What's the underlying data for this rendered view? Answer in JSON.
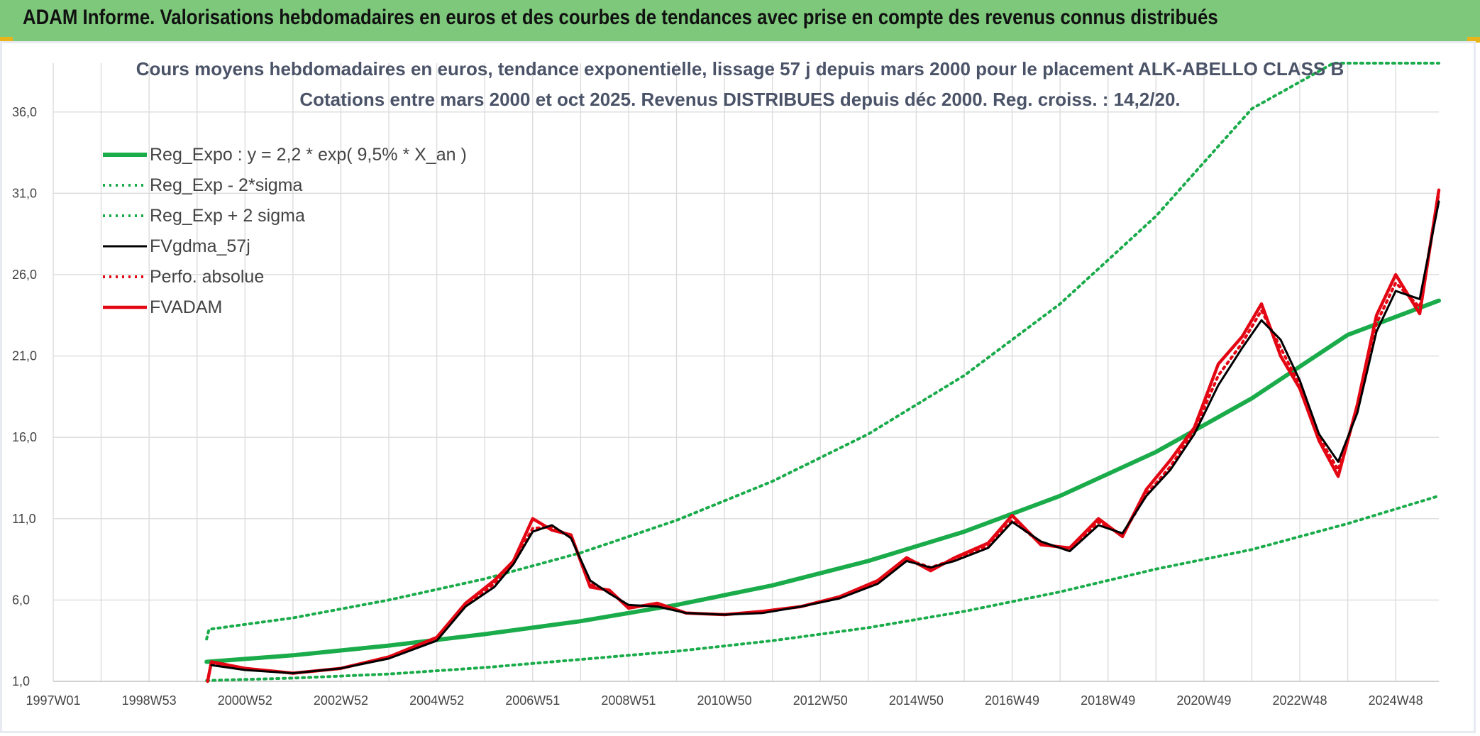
{
  "banner": {
    "title": "ADAM Informe. Valorisations hebdomadaires en euros et des courbes de tendances avec prise en compte des revenus connus distribués"
  },
  "colors": {
    "banner_bg": "#7dc87b",
    "trend": "#1aab4a",
    "black": "#000000",
    "red": "#e30613"
  },
  "chart_data": {
    "type": "line",
    "title": "Cours moyens hebdomadaires en euros, tendance exponentielle, lissage 57 j depuis mars 2000 pour le placement ALK-ABELLO CLASS B",
    "subtitle": "Cotations entre mars 2000 et oct 2025. Revenus DISTRIBUES depuis déc 2000. Reg. croiss. : 14,2/20.",
    "xlabel": "",
    "ylabel": "",
    "ylim": [
      1,
      39
    ],
    "yticks": [
      "1,0",
      "6,0",
      "11,0",
      "16,0",
      "21,0",
      "26,0",
      "31,0",
      "36,0"
    ],
    "xlim": [
      1997.0,
      2025.9
    ],
    "xticks": [
      {
        "label": "1997W01",
        "x": 1997.0
      },
      {
        "label": "1998W53",
        "x": 1999.0
      },
      {
        "label": "2000W52",
        "x": 2001.0
      },
      {
        "label": "2002W52",
        "x": 2003.0
      },
      {
        "label": "2004W52",
        "x": 2005.0
      },
      {
        "label": "2006W51",
        "x": 2007.0
      },
      {
        "label": "2008W51",
        "x": 2009.0
      },
      {
        "label": "2010W50",
        "x": 2011.0
      },
      {
        "label": "2012W50",
        "x": 2013.0
      },
      {
        "label": "2014W50",
        "x": 2015.0
      },
      {
        "label": "2016W49",
        "x": 2017.0
      },
      {
        "label": "2018W49",
        "x": 2019.0
      },
      {
        "label": "2020W49",
        "x": 2021.0
      },
      {
        "label": "2022W48",
        "x": 2023.0
      },
      {
        "label": "2024W48",
        "x": 2025.0
      }
    ],
    "grid": true,
    "legend_position": "top-left",
    "series": [
      {
        "name": "Reg_Expo : y = 2,2 * exp( 9,5% *  X_an )",
        "style": "solid-thick",
        "color": "#1aab4a",
        "x": [
          2000.2,
          2002,
          2004,
          2006,
          2008,
          2010,
          2012,
          2014,
          2016,
          2018,
          2020,
          2022,
          2024,
          2025.9
        ],
        "y": [
          2.2,
          2.6,
          3.2,
          3.9,
          4.7,
          5.7,
          6.9,
          8.4,
          10.2,
          12.4,
          15.1,
          18.4,
          22.3,
          24.4
        ]
      },
      {
        "name": "Reg_Exp - 2*sigma",
        "style": "dotted",
        "color": "#1aab4a",
        "x": [
          2000.2,
          2002,
          2004,
          2006,
          2008,
          2010,
          2012,
          2014,
          2016,
          2018,
          2020,
          2022,
          2024,
          2025.9
        ],
        "y": [
          1.05,
          1.2,
          1.45,
          1.85,
          2.35,
          2.85,
          3.5,
          4.3,
          5.3,
          6.5,
          7.9,
          9.1,
          10.7,
          12.4
        ]
      },
      {
        "name": "Reg_Exp + 2 sigma",
        "style": "dotted",
        "color": "#1aab4a",
        "x": [
          2000.2,
          2000.25,
          2002,
          2004,
          2006,
          2008,
          2010,
          2012,
          2014,
          2016,
          2018,
          2020,
          2022,
          2023.7,
          2025.9
        ],
        "y": [
          3.6,
          4.2,
          4.9,
          6.0,
          7.3,
          8.9,
          10.9,
          13.3,
          16.2,
          19.8,
          24.2,
          29.6,
          36.2,
          39.0,
          39.0
        ]
      },
      {
        "name": "FVgdma_57j",
        "style": "solid",
        "color": "#000000",
        "x": [
          2000.3,
          2001,
          2002,
          2003,
          2004,
          2005,
          2005.6,
          2006.2,
          2006.6,
          2007,
          2007.4,
          2007.8,
          2008.2,
          2008.6,
          2009,
          2009.6,
          2010.2,
          2011,
          2011.8,
          2012.6,
          2013.4,
          2014.2,
          2014.8,
          2015.3,
          2015.8,
          2016.5,
          2017,
          2017.6,
          2018.2,
          2018.8,
          2019.3,
          2019.8,
          2020.3,
          2020.8,
          2021.3,
          2021.8,
          2022.2,
          2022.6,
          2023,
          2023.4,
          2023.8,
          2024.2,
          2024.6,
          2025,
          2025.5,
          2025.9
        ],
        "y": [
          2.0,
          1.7,
          1.5,
          1.8,
          2.4,
          3.5,
          5.6,
          6.8,
          8.2,
          10.2,
          10.6,
          9.8,
          7.2,
          6.4,
          5.7,
          5.6,
          5.2,
          5.1,
          5.2,
          5.6,
          6.1,
          7.0,
          8.4,
          8.0,
          8.4,
          9.2,
          10.8,
          9.6,
          9.0,
          10.6,
          10.1,
          12.4,
          14.0,
          16.2,
          19.2,
          21.5,
          23.2,
          22.0,
          19.5,
          16.2,
          14.5,
          17.5,
          22.5,
          25.0,
          24.5,
          30.5
        ]
      },
      {
        "name": "Perfo. absolue",
        "style": "dotted",
        "color": "#e30613",
        "x": [
          2000.3,
          2001,
          2002,
          2003,
          2004,
          2005,
          2005.6,
          2006.2,
          2006.6,
          2007,
          2007.4,
          2007.8,
          2008.2,
          2008.6,
          2009,
          2009.6,
          2010.2,
          2011,
          2011.8,
          2012.6,
          2013.4,
          2014.2,
          2014.8,
          2015.3,
          2015.8,
          2016.5,
          2017,
          2017.6,
          2018.2,
          2018.8,
          2019.3,
          2019.8,
          2020.3,
          2020.8,
          2021.3,
          2021.8,
          2022.2,
          2022.6,
          2023,
          2023.4,
          2023.8,
          2024.2,
          2024.6,
          2025,
          2025.5,
          2025.9
        ],
        "y": [
          2.1,
          1.8,
          1.5,
          1.8,
          2.5,
          3.6,
          5.7,
          7.0,
          8.3,
          10.4,
          10.5,
          9.9,
          7.0,
          6.5,
          5.6,
          5.7,
          5.2,
          5.1,
          5.3,
          5.6,
          6.2,
          7.1,
          8.5,
          8.0,
          8.5,
          9.3,
          10.9,
          9.5,
          9.1,
          10.8,
          10.0,
          12.5,
          14.2,
          16.4,
          19.8,
          21.8,
          23.8,
          21.5,
          19.2,
          16.0,
          14.0,
          17.8,
          23.0,
          25.5,
          24.0,
          31.0
        ]
      },
      {
        "name": "FVADAM",
        "style": "solid-thick",
        "color": "#e30613",
        "x": [
          2000.22,
          2000.3,
          2001,
          2002,
          2003,
          2004,
          2005,
          2005.6,
          2006.2,
          2006.6,
          2007,
          2007.4,
          2007.8,
          2008.2,
          2008.6,
          2009,
          2009.6,
          2010.2,
          2011,
          2011.8,
          2012.6,
          2013.4,
          2014.2,
          2014.8,
          2015.3,
          2015.8,
          2016.5,
          2017,
          2017.6,
          2018.2,
          2018.8,
          2019.3,
          2019.8,
          2020.3,
          2020.8,
          2021.3,
          2021.8,
          2022.2,
          2022.6,
          2023,
          2023.4,
          2023.8,
          2024.2,
          2024.6,
          2025,
          2025.5,
          2025.9
        ],
        "y": [
          1.0,
          2.2,
          1.8,
          1.5,
          1.8,
          2.5,
          3.7,
          5.8,
          7.2,
          8.4,
          11.0,
          10.3,
          10.0,
          6.8,
          6.6,
          5.5,
          5.8,
          5.2,
          5.1,
          5.3,
          5.6,
          6.2,
          7.2,
          8.6,
          7.8,
          8.6,
          9.5,
          11.2,
          9.4,
          9.2,
          11.0,
          9.9,
          12.8,
          14.6,
          16.6,
          20.5,
          22.2,
          24.2,
          21.0,
          19.0,
          15.8,
          13.6,
          18.0,
          23.5,
          26.0,
          23.6,
          31.2
        ]
      }
    ]
  }
}
